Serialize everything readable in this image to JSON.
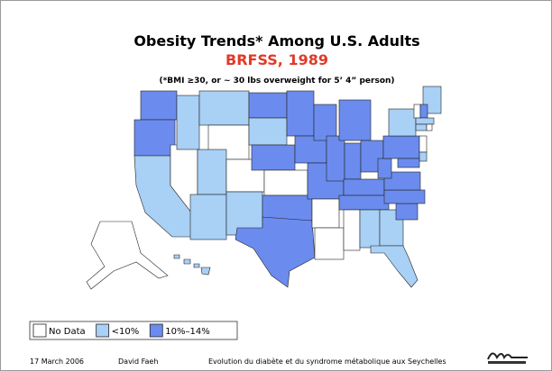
{
  "header": {
    "title": "Obesity Trends* Among U.S. Adults",
    "subtitle": "BRFSS, 1989",
    "note": "(*BMI ≥30, or ~ 30 lbs overweight for 5’ 4” person)"
  },
  "legend": {
    "items": [
      {
        "label": "No Data",
        "color": "#ffffff"
      },
      {
        "label": "<10%",
        "color": "#a9d0f5"
      },
      {
        "label": "10%–14%",
        "color": "#6b8cee"
      }
    ]
  },
  "footer": {
    "date": "17 March 2006",
    "author": "David Faeh",
    "topic": "Evolution du diabète et du syndrome métabolique aux Seychelles"
  }
}
